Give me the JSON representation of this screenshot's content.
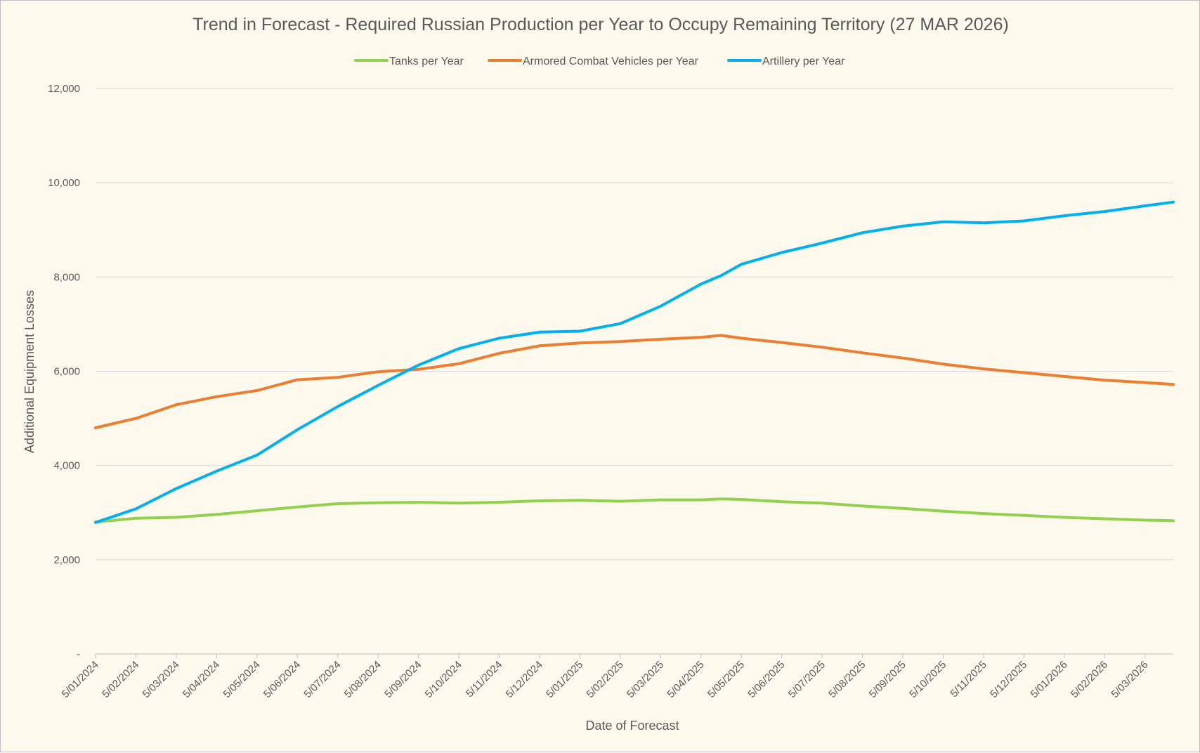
{
  "chart_data": {
    "type": "line",
    "title": "Trend in Forecast - Required Russian Production per Year to Occupy Remaining Territory (27 MAR 2026)",
    "xlabel": "Date of Forecast",
    "ylabel": "Additional Equipment Losses",
    "ylim": [
      0,
      12000
    ],
    "y_ticks": [
      0,
      2000,
      4000,
      6000,
      8000,
      10000,
      12000
    ],
    "y_tick_labels": [
      "-",
      "2,000",
      "4,000",
      "6,000",
      "8,000",
      "10,000",
      "12,000"
    ],
    "x_tick_labels": [
      "5/01/2024",
      "5/02/2024",
      "5/03/2024",
      "5/04/2024",
      "5/05/2024",
      "5/06/2024",
      "5/07/2024",
      "5/08/2024",
      "5/09/2024",
      "5/10/2024",
      "5/11/2024",
      "5/12/2024",
      "5/01/2025",
      "5/02/2025",
      "5/03/2025",
      "5/04/2025",
      "5/05/2025",
      "5/06/2025",
      "5/07/2025",
      "5/08/2025",
      "5/09/2025",
      "5/10/2025",
      "5/11/2025",
      "5/12/2025",
      "5/01/2026",
      "5/02/2026",
      "5/03/2026"
    ],
    "x_end_month_index": 26.7,
    "grid": "horizontal",
    "legend_position": "top",
    "series": [
      {
        "name": "Tanks per Year",
        "color": "#92d050",
        "x": [
          0,
          1,
          2,
          3,
          4,
          5,
          6,
          7,
          8,
          9,
          10,
          11,
          12,
          13,
          14,
          15,
          15.5,
          16,
          17,
          18,
          19,
          20,
          21,
          22,
          23,
          24,
          25,
          26,
          26.7
        ],
        "y": [
          2800,
          2880,
          2900,
          2960,
          3040,
          3120,
          3190,
          3210,
          3220,
          3200,
          3220,
          3250,
          3260,
          3240,
          3270,
          3270,
          3290,
          3280,
          3230,
          3200,
          3140,
          3090,
          3030,
          2980,
          2940,
          2900,
          2870,
          2840,
          2830
        ]
      },
      {
        "name": "Armored Combat Vehicles per Year",
        "color": "#ed7d31",
        "x": [
          0,
          1,
          2,
          3,
          4,
          5,
          6,
          7,
          8,
          9,
          10,
          11,
          12,
          13,
          14,
          15,
          15.5,
          16,
          17,
          18,
          19,
          20,
          21,
          22,
          23,
          24,
          25,
          26,
          26.7
        ],
        "y": [
          4800,
          5000,
          5290,
          5460,
          5590,
          5820,
          5870,
          5990,
          6040,
          6160,
          6380,
          6540,
          6600,
          6630,
          6680,
          6720,
          6760,
          6700,
          6610,
          6510,
          6390,
          6280,
          6150,
          6050,
          5970,
          5890,
          5810,
          5760,
          5720
        ]
      },
      {
        "name": "Artillery per Year",
        "color": "#00b0f0",
        "x": [
          0,
          1,
          2,
          3,
          4,
          5,
          6,
          7,
          8,
          9,
          10,
          11,
          12,
          13,
          14,
          15,
          15.5,
          16,
          17,
          18,
          19,
          20,
          21,
          22,
          23,
          24,
          25,
          26,
          26.7
        ],
        "y": [
          2790,
          3080,
          3510,
          3880,
          4220,
          4760,
          5250,
          5700,
          6130,
          6480,
          6700,
          6830,
          6850,
          7010,
          7380,
          7850,
          8030,
          8270,
          8520,
          8720,
          8940,
          9080,
          9170,
          9150,
          9190,
          9300,
          9390,
          9510,
          9590
        ]
      }
    ]
  }
}
